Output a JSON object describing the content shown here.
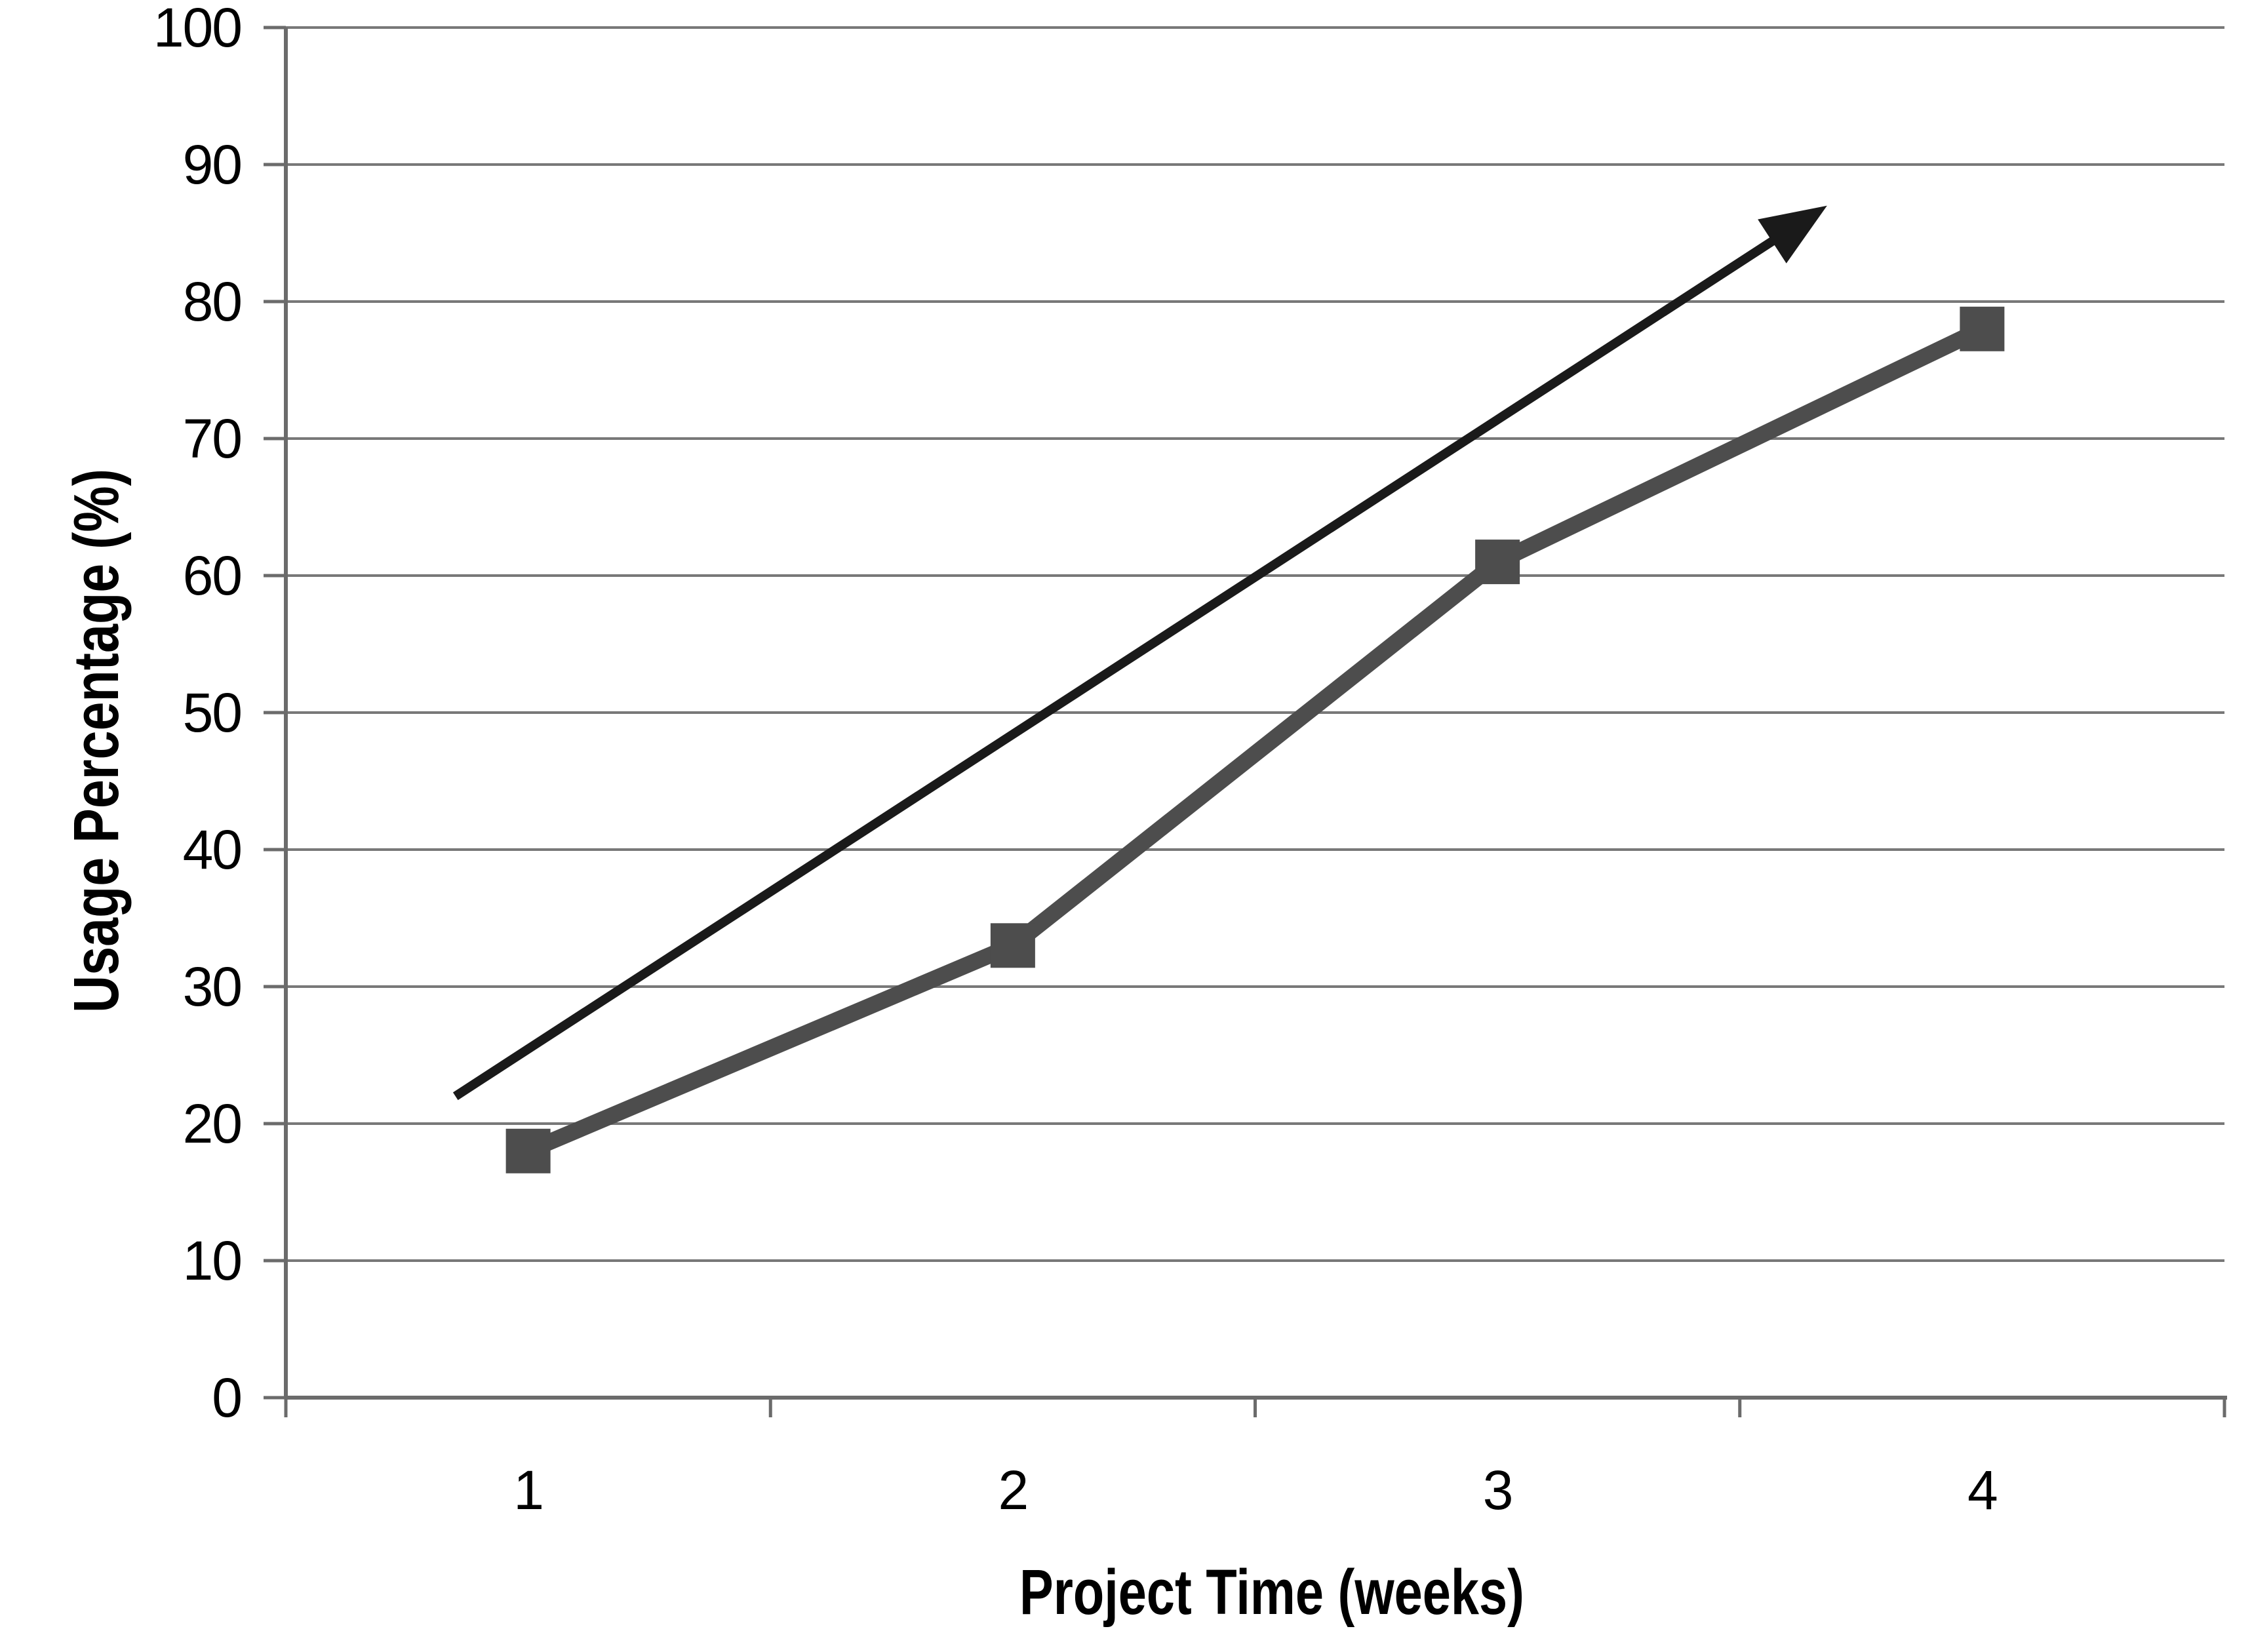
{
  "chart_data": {
    "type": "line",
    "title": "",
    "xlabel": "Project Time (weeks)",
    "ylabel": "Usage Percentage (%)",
    "categories": [
      "1",
      "2",
      "3",
      "4"
    ],
    "series": [
      {
        "name": "usage-percentage",
        "values": [
          18,
          33,
          61,
          78
        ],
        "color": "#4d4d4d",
        "marker": "square"
      }
    ],
    "ylim": [
      0,
      100
    ],
    "ytick_labels": [
      "0",
      "10",
      "20",
      "30",
      "40",
      "50",
      "60",
      "70",
      "80",
      "90",
      "100"
    ],
    "grid": "horizontal-only",
    "legend": "none",
    "annotations": [
      {
        "type": "trend-arrow",
        "from_week": 0.85,
        "from_value": 22,
        "to_week": 3.68,
        "to_value": 87,
        "color": "#1a1a1a"
      }
    ]
  },
  "style_colors": {
    "background": "#ffffff",
    "gridline": "#787878",
    "axis": "#6b6b6b",
    "text": "#000000",
    "series": "#4d4d4d",
    "arrow": "#1a1a1a"
  }
}
